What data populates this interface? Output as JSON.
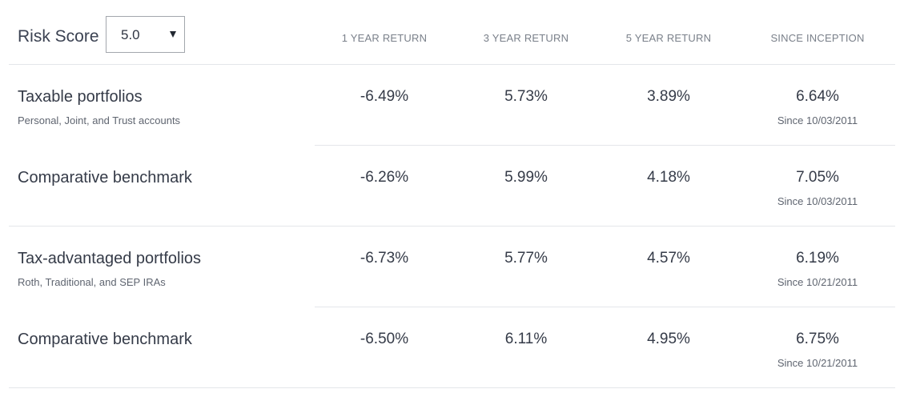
{
  "risk": {
    "label": "Risk Score",
    "selected_value": "5.0"
  },
  "columns": [
    "1 YEAR RETURN",
    "3 YEAR RETURN",
    "5 YEAR RETURN",
    "SINCE INCEPTION"
  ],
  "rows": [
    {
      "title": "Taxable portfolios",
      "subtitle": "Personal, Joint, and Trust accounts",
      "one_year": "-6.49%",
      "three_year": "5.73%",
      "five_year": "3.89%",
      "since_inception": "6.64%",
      "since_date": "Since 10/03/2011"
    },
    {
      "title": "Comparative benchmark",
      "subtitle": "",
      "one_year": "-6.26%",
      "three_year": "5.99%",
      "five_year": "4.18%",
      "since_inception": "7.05%",
      "since_date": "Since 10/03/2011"
    },
    {
      "title": "Tax-advantaged portfolios",
      "subtitle": "Roth, Traditional, and SEP IRAs",
      "one_year": "-6.73%",
      "three_year": "5.77%",
      "five_year": "4.57%",
      "since_inception": "6.19%",
      "since_date": "Since 10/21/2011"
    },
    {
      "title": "Comparative benchmark",
      "subtitle": "",
      "one_year": "-6.50%",
      "three_year": "6.11%",
      "five_year": "4.95%",
      "since_inception": "6.75%",
      "since_date": "Since 10/21/2011"
    }
  ],
  "icons": {
    "risk_dropdown": "chevron-down-icon"
  },
  "colors": {
    "text_primary": "#353b48",
    "text_secondary": "#5f6570",
    "header_text": "#7a808a",
    "divider": "#e4e6ea",
    "select_border": "#a3a7ad"
  }
}
